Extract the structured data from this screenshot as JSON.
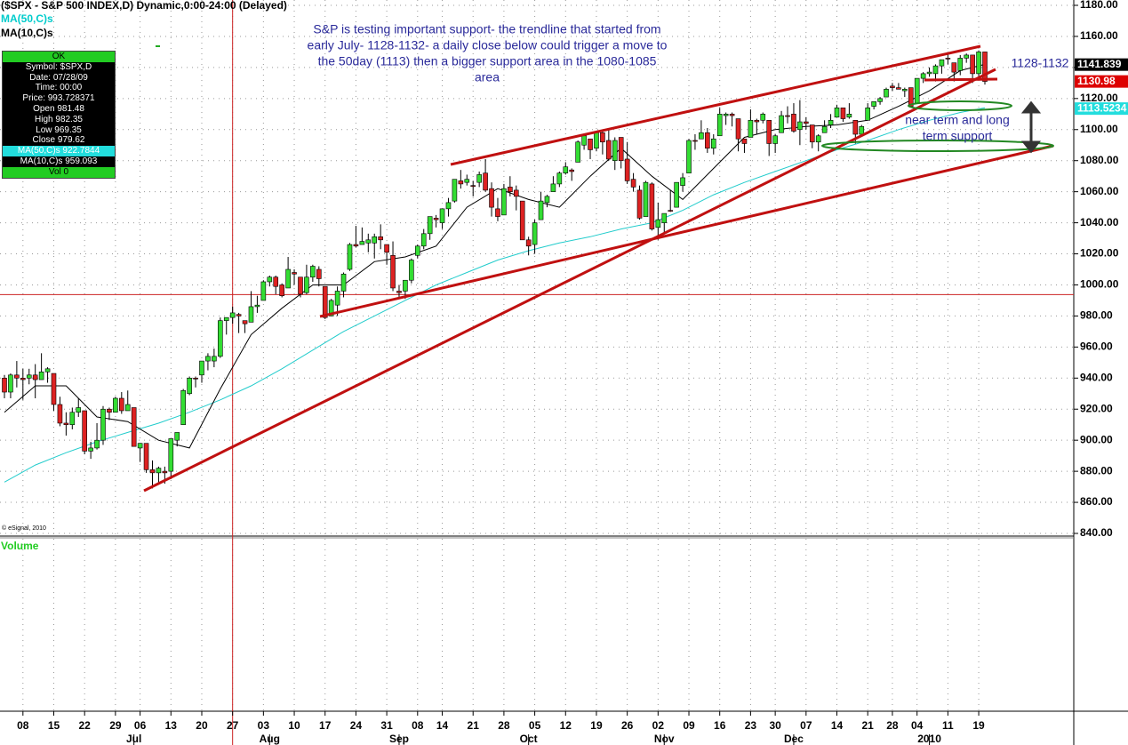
{
  "chart_data": {
    "type": "candlestick",
    "title": "($SPX - S&P 500 INDEX,D) Dynamic,0:00-24:00 (Delayed)",
    "copyright": "© eSignal, 2010",
    "volume_label": "Volume",
    "up_color": "#33dd33",
    "down_color": "#dd2222",
    "xlim": [
      0,
      159
    ],
    "ylim": [
      840,
      1180
    ],
    "yticks": [
      {
        "value": 840,
        "label": "840.00"
      },
      {
        "value": 860,
        "label": "860.00"
      },
      {
        "value": 880,
        "label": "880.00"
      },
      {
        "value": 900,
        "label": "900.00"
      },
      {
        "value": 920,
        "label": "920.00"
      },
      {
        "value": 940,
        "label": "940.00"
      },
      {
        "value": 960,
        "label": "960.00"
      },
      {
        "value": 980,
        "label": "980.00"
      },
      {
        "value": 1000,
        "label": "1000.00"
      },
      {
        "value": 1020,
        "label": "1020.00"
      },
      {
        "value": 1040,
        "label": "1040.00"
      },
      {
        "value": 1060,
        "label": "1060.00"
      },
      {
        "value": 1080,
        "label": "1080.00"
      },
      {
        "value": 1100,
        "label": "1100.00"
      },
      {
        "value": 1120,
        "label": "1120.00"
      },
      {
        "value": 1140,
        "label": "1140.00"
      },
      {
        "value": 1160,
        "label": "1160.00"
      },
      {
        "value": 1180,
        "label": "1180.00"
      }
    ],
    "xticks": [
      {
        "value": 3,
        "label": "08"
      },
      {
        "value": 8,
        "label": "15"
      },
      {
        "value": 13,
        "label": "22"
      },
      {
        "value": 18,
        "label": "29"
      },
      {
        "value": 22,
        "label": "06"
      },
      {
        "value": 27,
        "label": "13"
      },
      {
        "value": 32,
        "label": "20"
      },
      {
        "value": 37,
        "label": "27"
      },
      {
        "value": 42,
        "label": "03"
      },
      {
        "value": 47,
        "label": "10"
      },
      {
        "value": 52,
        "label": "17"
      },
      {
        "value": 57,
        "label": "24"
      },
      {
        "value": 62,
        "label": "31"
      },
      {
        "value": 67,
        "label": "08"
      },
      {
        "value": 71,
        "label": "14"
      },
      {
        "value": 76,
        "label": "21"
      },
      {
        "value": 81,
        "label": "28"
      },
      {
        "value": 86,
        "label": "05"
      },
      {
        "value": 91,
        "label": "12"
      },
      {
        "value": 96,
        "label": "19"
      },
      {
        "value": 101,
        "label": "26"
      },
      {
        "value": 106,
        "label": "02"
      },
      {
        "value": 111,
        "label": "09"
      },
      {
        "value": 116,
        "label": "16"
      },
      {
        "value": 121,
        "label": "23"
      },
      {
        "value": 125,
        "label": "30"
      },
      {
        "value": 130,
        "label": "07"
      },
      {
        "value": 135,
        "label": "14"
      },
      {
        "value": 140,
        "label": "21"
      },
      {
        "value": 144,
        "label": "28"
      },
      {
        "value": 148,
        "label": "04"
      },
      {
        "value": 153,
        "label": "11"
      },
      {
        "value": 158,
        "label": "19"
      }
    ],
    "month_ticks": [
      {
        "value": 21,
        "label": "Jul"
      },
      {
        "value": 43,
        "label": "Aug"
      },
      {
        "value": 64,
        "label": "Sep"
      },
      {
        "value": 85,
        "label": "Oct"
      },
      {
        "value": 107,
        "label": "Nov"
      },
      {
        "value": 128,
        "label": "Dec"
      },
      {
        "value": 150,
        "label": "2010"
      }
    ],
    "ohlc": [
      [
        940,
        942,
        927,
        931
      ],
      [
        931,
        943,
        927,
        942
      ],
      [
        942,
        951,
        934,
        940
      ],
      [
        940,
        946,
        926,
        939
      ],
      [
        940,
        946,
        936,
        942
      ],
      [
        942,
        949,
        927,
        939
      ],
      [
        939,
        956,
        939,
        944
      ],
      [
        944,
        947,
        937,
        946
      ],
      [
        943,
        943,
        919,
        923
      ],
      [
        923,
        928,
        909,
        911
      ],
      [
        911,
        918,
        903,
        910
      ],
      [
        910,
        921,
        907,
        918
      ],
      [
        918,
        927,
        915,
        921
      ],
      [
        919,
        919,
        891,
        893
      ],
      [
        893,
        899,
        888,
        895
      ],
      [
        895,
        911,
        894,
        900
      ],
      [
        900,
        922,
        897,
        920
      ],
      [
        920,
        921,
        913,
        918
      ],
      [
        918,
        928,
        918,
        927
      ],
      [
        927,
        931,
        917,
        919
      ],
      [
        919,
        932,
        919,
        923
      ],
      [
        921,
        921,
        896,
        896
      ],
      [
        895,
        898,
        886,
        898
      ],
      [
        898,
        898,
        879,
        881
      ],
      [
        881,
        887,
        869,
        879
      ],
      [
        879,
        883,
        872,
        882
      ],
      [
        880,
        883,
        872,
        879
      ],
      [
        880,
        901,
        875,
        901
      ],
      [
        900,
        905,
        896,
        905
      ],
      [
        910,
        933,
        910,
        932
      ],
      [
        930,
        941,
        929,
        940
      ],
      [
        940,
        941,
        934,
        940
      ],
      [
        942,
        951,
        937,
        951
      ],
      [
        951,
        956,
        945,
        954
      ],
      [
        951,
        959,
        947,
        954
      ],
      [
        954,
        979,
        953,
        977
      ],
      [
        977,
        979,
        968,
        979
      ],
      [
        979,
        986,
        975,
        982
      ],
      [
        981,
        982,
        969,
        980
      ],
      [
        977,
        977,
        969,
        975
      ],
      [
        976,
        996,
        976,
        986
      ],
      [
        986,
        993,
        982,
        987
      ],
      [
        990,
        1003,
        990,
        1002
      ],
      [
        1002,
        1006,
        999,
        1005
      ],
      [
        1005,
        1006,
        994,
        999
      ],
      [
        1000,
        1001,
        992,
        993
      ],
      [
        998,
        1018,
        998,
        1010
      ],
      [
        1008,
        1010,
        1000,
        1007
      ],
      [
        1005,
        1005,
        992,
        994
      ],
      [
        995,
        1013,
        994,
        1005
      ],
      [
        1005,
        1013,
        1002,
        1012
      ],
      [
        1010,
        1012,
        999,
        1004
      ],
      [
        999,
        999,
        978,
        979
      ],
      [
        980,
        991,
        980,
        990
      ],
      [
        987,
        999,
        980,
        996
      ],
      [
        996,
        1008,
        992,
        1007
      ],
      [
        1010,
        1027,
        1009,
        1026
      ],
      [
        1026,
        1038,
        1024,
        1025
      ],
      [
        1026,
        1037,
        1026,
        1028
      ],
      [
        1027,
        1033,
        1021,
        1029
      ],
      [
        1027,
        1033,
        1017,
        1031
      ],
      [
        1031,
        1039,
        1023,
        1029
      ],
      [
        1026,
        1026,
        1013,
        1021
      ],
      [
        1019,
        1028,
        996,
        998
      ],
      [
        996,
        1000,
        991,
        995
      ],
      [
        996,
        1003,
        991,
        1003
      ],
      [
        1003,
        1017,
        1001,
        1016
      ],
      [
        1019,
        1026,
        1017,
        1025
      ],
      [
        1025,
        1036,
        1023,
        1033
      ],
      [
        1033,
        1044,
        1029,
        1044
      ],
      [
        1043,
        1045,
        1037,
        1042
      ],
      [
        1040,
        1049,
        1036,
        1049
      ],
      [
        1049,
        1056,
        1044,
        1053
      ],
      [
        1054,
        1068,
        1053,
        1068
      ],
      [
        1067,
        1074,
        1062,
        1065
      ],
      [
        1066,
        1071,
        1064,
        1068
      ],
      [
        1064,
        1067,
        1057,
        1064
      ],
      [
        1066,
        1073,
        1063,
        1071
      ],
      [
        1072,
        1081,
        1060,
        1061
      ],
      [
        1062,
        1066,
        1044,
        1050
      ],
      [
        1049,
        1056,
        1041,
        1044
      ],
      [
        1045,
        1065,
        1045,
        1062
      ],
      [
        1063,
        1070,
        1057,
        1060
      ],
      [
        1061,
        1064,
        1048,
        1057
      ],
      [
        1054,
        1054,
        1029,
        1029
      ],
      [
        1029,
        1031,
        1019,
        1025
      ],
      [
        1026,
        1042,
        1020,
        1040
      ],
      [
        1042,
        1060,
        1042,
        1054
      ],
      [
        1053,
        1058,
        1050,
        1057
      ],
      [
        1060,
        1070,
        1060,
        1065
      ],
      [
        1065,
        1073,
        1063,
        1072
      ],
      [
        1072,
        1079,
        1071,
        1076
      ],
      [
        1074,
        1075,
        1067,
        1073
      ],
      [
        1079,
        1093,
        1079,
        1092
      ],
      [
        1090,
        1096,
        1087,
        1096
      ],
      [
        1094,
        1094,
        1081,
        1087
      ],
      [
        1088,
        1099,
        1086,
        1098
      ],
      [
        1098,
        1099,
        1084,
        1092
      ],
      [
        1093,
        1101,
        1080,
        1081
      ],
      [
        1080,
        1095,
        1074,
        1093
      ],
      [
        1095,
        1095,
        1075,
        1080
      ],
      [
        1081,
        1092,
        1065,
        1067
      ],
      [
        1068,
        1072,
        1060,
        1063
      ],
      [
        1061,
        1064,
        1042,
        1043
      ],
      [
        1044,
        1067,
        1044,
        1066
      ],
      [
        1065,
        1066,
        1035,
        1036
      ],
      [
        1037,
        1053,
        1029,
        1042
      ],
      [
        1040,
        1046,
        1033,
        1046
      ],
      [
        1048,
        1061,
        1047,
        1048
      ],
      [
        1050,
        1066,
        1050,
        1066
      ],
      [
        1064,
        1072,
        1060,
        1069
      ],
      [
        1072,
        1094,
        1072,
        1093
      ],
      [
        1093,
        1097,
        1087,
        1093
      ],
      [
        1094,
        1106,
        1094,
        1098
      ],
      [
        1098,
        1101,
        1085,
        1088
      ],
      [
        1088,
        1097,
        1084,
        1094
      ],
      [
        1096,
        1114,
        1096,
        1110
      ],
      [
        1109,
        1111,
        1103,
        1110
      ],
      [
        1110,
        1111,
        1102,
        1109
      ],
      [
        1107,
        1107,
        1086,
        1094
      ],
      [
        1094,
        1094,
        1085,
        1091
      ],
      [
        1095,
        1113,
        1095,
        1106
      ],
      [
        1106,
        1107,
        1097,
        1105
      ],
      [
        1106,
        1111,
        1104,
        1110
      ],
      [
        1106,
        1106,
        1083,
        1091
      ],
      [
        1091,
        1097,
        1085,
        1096
      ],
      [
        1098,
        1112,
        1098,
        1109
      ],
      [
        1109,
        1115,
        1104,
        1109
      ],
      [
        1110,
        1117,
        1098,
        1099
      ],
      [
        1100,
        1119,
        1090,
        1105
      ],
      [
        1105,
        1108,
        1100,
        1104
      ],
      [
        1103,
        1103,
        1088,
        1092
      ],
      [
        1092,
        1097,
        1086,
        1096
      ],
      [
        1098,
        1106,
        1098,
        1102
      ],
      [
        1103,
        1110,
        1101,
        1106
      ],
      [
        1108,
        1116,
        1108,
        1114
      ],
      [
        1114,
        1114,
        1105,
        1107
      ],
      [
        1108,
        1117,
        1107,
        1110
      ],
      [
        1106,
        1106,
        1091,
        1097
      ],
      [
        1097,
        1103,
        1097,
        1102
      ],
      [
        1106,
        1117,
        1106,
        1114
      ],
      [
        1115,
        1118,
        1113,
        1118
      ],
      [
        1118,
        1121,
        1116,
        1120
      ],
      [
        1121,
        1127,
        1121,
        1126
      ],
      [
        1128,
        1130,
        1125,
        1127
      ],
      [
        1127,
        1130,
        1126,
        1126
      ],
      [
        1125,
        1127,
        1121,
        1126
      ],
      [
        1127,
        1127,
        1115,
        1115
      ],
      [
        1117,
        1133,
        1117,
        1133
      ],
      [
        1133,
        1137,
        1130,
        1136
      ],
      [
        1136,
        1140,
        1134,
        1137
      ],
      [
        1136,
        1142,
        1131,
        1141
      ],
      [
        1141,
        1145,
        1136,
        1145
      ],
      [
        1146,
        1150,
        1142,
        1146
      ],
      [
        1143,
        1143,
        1131,
        1137
      ],
      [
        1138,
        1148,
        1135,
        1146
      ],
      [
        1146,
        1149,
        1143,
        1148
      ],
      [
        1148,
        1148,
        1130,
        1136
      ],
      [
        1136,
        1151,
        1134,
        1150
      ],
      [
        1150,
        1150,
        1129,
        1131
      ]
    ],
    "series": [
      {
        "name": "MA(50,C)s",
        "color": "#22cccc",
        "x": [
          0,
          5,
          10,
          15,
          20,
          25,
          30,
          35,
          40,
          45,
          50,
          55,
          60,
          65,
          70,
          75,
          80,
          85,
          90,
          95,
          100,
          105,
          110,
          115,
          120,
          125,
          130,
          135,
          140,
          145,
          150,
          155,
          159
        ],
        "values": [
          873,
          884,
          892,
          899,
          905,
          911,
          918,
          926,
          935,
          946,
          958,
          970,
          980,
          990,
          1000,
          1008,
          1016,
          1022,
          1027,
          1031,
          1036,
          1040,
          1048,
          1058,
          1066,
          1073,
          1080,
          1087,
          1093,
          1100,
          1106,
          1111,
          1114
        ]
      },
      {
        "name": "MA(10,C)s",
        "color": "#000000",
        "x": [
          0,
          5,
          10,
          15,
          20,
          25,
          30,
          35,
          40,
          45,
          50,
          55,
          60,
          65,
          70,
          75,
          80,
          85,
          90,
          95,
          100,
          105,
          110,
          115,
          120,
          125,
          130,
          135,
          140,
          145,
          150,
          155,
          159
        ],
        "values": [
          918,
          935,
          935,
          915,
          912,
          900,
          895,
          933,
          968,
          985,
          1000,
          1000,
          1015,
          1018,
          1025,
          1050,
          1062,
          1055,
          1050,
          1070,
          1088,
          1070,
          1055,
          1075,
          1095,
          1100,
          1102,
          1103,
          1106,
          1115,
          1125,
          1138,
          1142
        ]
      }
    ],
    "price_labels": [
      {
        "value": 1141.839,
        "color": "#000000"
      },
      {
        "value": 1130.98,
        "color": "#dd0000"
      },
      {
        "value": 1113.5234,
        "color": "#22dddd"
      }
    ],
    "crosshair": {
      "x": 37,
      "y": 993.728371
    },
    "data_window": {
      "header": "OK",
      "rows": [
        "Symbol: $SPX,D",
        "Date: 07/28/09",
        "Time: 00:00",
        "Price: 993.728371",
        "Open 981.48",
        "High 982.35",
        "Low 969.35",
        "Close 979.62",
        "MA(50,C)s 922.7844",
        "MA(10,C)s 959.093",
        "Vol 0"
      ]
    },
    "note": [
      "S&P is testing important support- the trendline that started from",
      "early July- 1128-1132- a daily close below could trigger a move to",
      "the 50day (1113) then a bigger support area in the 1080-1085",
      "area"
    ],
    "range_note": "1128-1132",
    "support_note": [
      "near term and long",
      "term support"
    ]
  }
}
